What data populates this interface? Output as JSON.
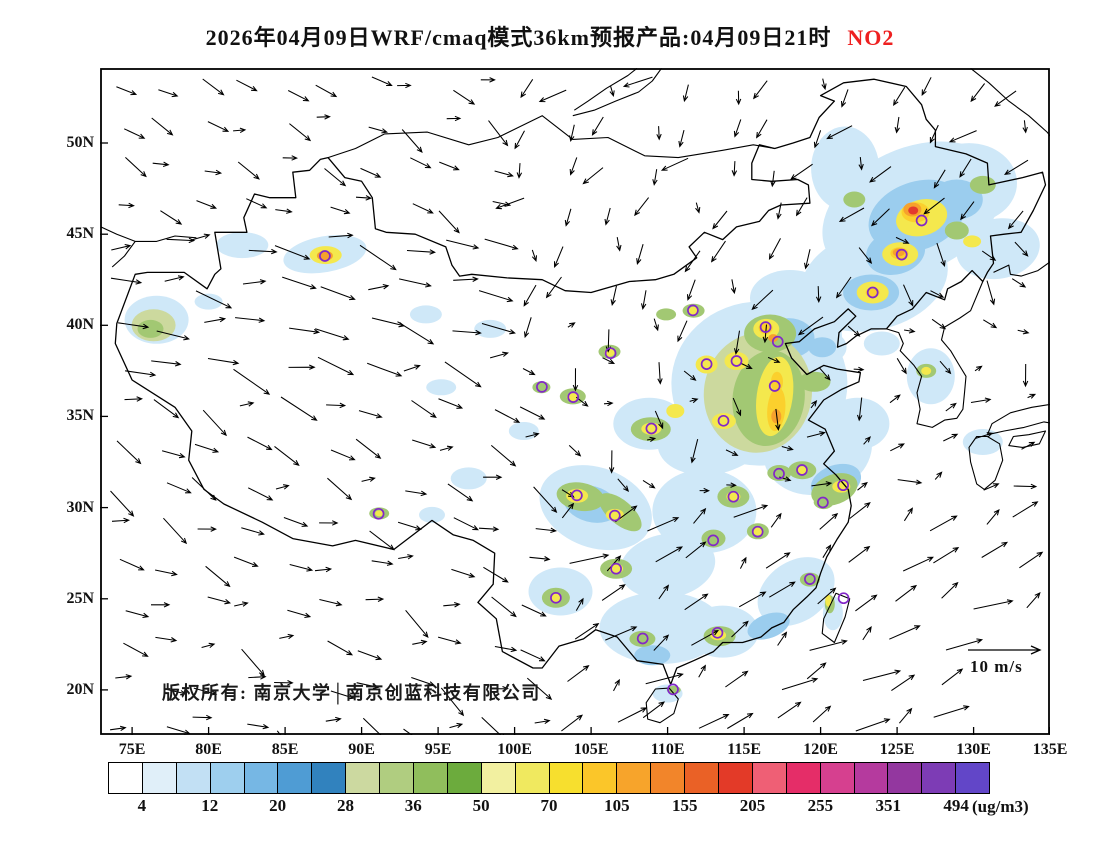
{
  "title": {
    "prefix": "2026年04月09日WRF/cmaq模式36km预报产品:04月09日21时",
    "pollutant": "NO2",
    "pollutant_color": "#ee2020"
  },
  "map": {
    "lat_ticks": [
      {
        "label": "50N",
        "lat": 50
      },
      {
        "label": "45N",
        "lat": 45
      },
      {
        "label": "40N",
        "lat": 40
      },
      {
        "label": "35N",
        "lat": 35
      },
      {
        "label": "30N",
        "lat": 30
      },
      {
        "label": "25N",
        "lat": 25
      },
      {
        "label": "20N",
        "lat": 20
      }
    ],
    "lon_ticks": [
      {
        "label": "75E",
        "lon": 75
      },
      {
        "label": "80E",
        "lon": 80
      },
      {
        "label": "85E",
        "lon": 85
      },
      {
        "label": "90E",
        "lon": 90
      },
      {
        "label": "95E",
        "lon": 95
      },
      {
        "label": "100E",
        "lon": 100
      },
      {
        "label": "105E",
        "lon": 105
      },
      {
        "label": "110E",
        "lon": 110
      },
      {
        "label": "115E",
        "lon": 115
      },
      {
        "label": "120E",
        "lon": 120
      },
      {
        "label": "125E",
        "lon": 125
      },
      {
        "label": "130E",
        "lon": 130
      },
      {
        "label": "135E",
        "lon": 135
      }
    ],
    "copyright": "版权所有: 南京大学│南京创蓝科技有限公司",
    "wind_legend": {
      "label": "10 m/s",
      "speed_mps": 10
    }
  },
  "colorbar": {
    "unit": "(ug/m3)",
    "tick_labels": [
      "4",
      "12",
      "20",
      "28",
      "36",
      "50",
      "70",
      "105",
      "155",
      "205",
      "255",
      "351",
      "494"
    ],
    "colors": [
      "#ffffff",
      "#e0eff9",
      "#c2e0f4",
      "#9ecfee",
      "#76b7e4",
      "#4f9cd4",
      "#3182be",
      "#ccd9a0",
      "#b0cd80",
      "#90be5c",
      "#6cab3d",
      "#f2f0a0",
      "#f0e95f",
      "#f7df2e",
      "#fbc629",
      "#f7a42b",
      "#f2852a",
      "#ea6126",
      "#e33a28",
      "#ef5f75",
      "#e52d68",
      "#d6408f",
      "#b53a9e",
      "#93379f",
      "#7d3cb5",
      "#6246c8"
    ]
  },
  "chart_data": {
    "type": "map",
    "model": "WRF/cmaq",
    "resolution": "36km",
    "issue_date": "2026年04月09日",
    "valid_time": "04月09日21时",
    "pollutant": "NO2",
    "lon_range": [
      75,
      135
    ],
    "lat_range": [
      20,
      50
    ],
    "stations_lonlat": [
      [
        87.6,
        43.8
      ],
      [
        126.6,
        45.75
      ],
      [
        125.3,
        43.88
      ],
      [
        123.4,
        41.8
      ],
      [
        116.4,
        39.9
      ],
      [
        117.2,
        39.1
      ],
      [
        114.5,
        38.04
      ],
      [
        112.55,
        37.87
      ],
      [
        111.65,
        40.82
      ],
      [
        106.27,
        38.47
      ],
      [
        101.78,
        36.62
      ],
      [
        103.83,
        36.06
      ],
      [
        108.94,
        34.34
      ],
      [
        113.65,
        34.76
      ],
      [
        117.0,
        36.67
      ],
      [
        117.28,
        31.86
      ],
      [
        118.78,
        32.06
      ],
      [
        121.47,
        31.23
      ],
      [
        120.15,
        30.28
      ],
      [
        114.3,
        30.6
      ],
      [
        112.98,
        28.2
      ],
      [
        115.89,
        28.68
      ],
      [
        119.3,
        26.08
      ],
      [
        121.5,
        25.03
      ],
      [
        113.26,
        23.13
      ],
      [
        108.37,
        22.82
      ],
      [
        110.35,
        20.03
      ],
      [
        106.63,
        26.65
      ],
      [
        102.7,
        25.05
      ],
      [
        104.07,
        30.67
      ],
      [
        106.55,
        29.56
      ],
      [
        91.11,
        29.66
      ]
    ],
    "hotspots": [
      [
        126.0,
        46.3,
        95,
        62,
        -25,
        "#cfe8f8"
      ],
      [
        123.5,
        42.5,
        75,
        50,
        -15,
        "#cfe8f8"
      ],
      [
        129.7,
        47.8,
        48,
        40,
        0,
        "#cfe8f8"
      ],
      [
        121.6,
        48.6,
        34,
        42,
        0,
        "#cfe8f8"
      ],
      [
        131.6,
        44.2,
        42,
        30,
        -10,
        "#cfe8f8"
      ],
      [
        118.0,
        41.5,
        40,
        28,
        0,
        "#cfe8f8"
      ],
      [
        116.0,
        36.8,
        88,
        82,
        0,
        "#cfe8f8"
      ],
      [
        118.0,
        39.4,
        52,
        38,
        0,
        "#cfe8f8"
      ],
      [
        112.9,
        33.8,
        55,
        36,
        -10,
        "#cfe8f8"
      ],
      [
        119.8,
        33.2,
        55,
        45,
        -15,
        "#cfe8f8"
      ],
      [
        122.4,
        34.6,
        32,
        26,
        0,
        "#cfe8f8"
      ],
      [
        120.0,
        38.8,
        26,
        18,
        0,
        "#cfe8f8"
      ],
      [
        105.3,
        30.0,
        58,
        40,
        20,
        "#cfe8f8"
      ],
      [
        112.4,
        29.8,
        52,
        42,
        0,
        "#cfe8f8"
      ],
      [
        110.0,
        26.8,
        48,
        32,
        -10,
        "#cfe8f8"
      ],
      [
        109.6,
        23.4,
        62,
        36,
        0,
        "#cfe8f8"
      ],
      [
        113.6,
        23.2,
        36,
        26,
        0,
        "#cfe8f8"
      ],
      [
        118.4,
        25.4,
        42,
        30,
        -35,
        "#cfe8f8"
      ],
      [
        103.0,
        25.4,
        32,
        24,
        0,
        "#cfe8f8"
      ],
      [
        108.8,
        34.6,
        36,
        26,
        0,
        "#cfe8f8"
      ],
      [
        97.0,
        31.6,
        18,
        11,
        0,
        "#cfe8f8"
      ],
      [
        100.6,
        34.2,
        15,
        9,
        0,
        "#cfe8f8"
      ],
      [
        95.2,
        36.6,
        15,
        8,
        0,
        "#cfe8f8"
      ],
      [
        94.6,
        29.6,
        13,
        8,
        0,
        "#cfe8f8"
      ],
      [
        87.6,
        43.9,
        42,
        18,
        -10,
        "#cfe8f8"
      ],
      [
        82.2,
        44.4,
        26,
        13,
        0,
        "#cfe8f8"
      ],
      [
        76.6,
        40.3,
        32,
        24,
        0,
        "#cfe8f8"
      ],
      [
        80.0,
        41.3,
        14,
        8,
        0,
        "#cfe8f8"
      ],
      [
        94.2,
        40.6,
        16,
        9,
        0,
        "#cfe8f8"
      ],
      [
        98.4,
        39.8,
        16,
        9,
        0,
        "#cfe8f8"
      ],
      [
        110.0,
        19.8,
        15,
        9,
        0,
        "#cfe8f8"
      ],
      [
        120.8,
        24.2,
        10,
        17,
        0,
        "#cfe8f8"
      ],
      [
        127.2,
        37.2,
        24,
        28,
        0,
        "#cfe8f8"
      ],
      [
        130.6,
        33.6,
        20,
        13,
        0,
        "#cfe8f8"
      ],
      [
        124.0,
        39.0,
        18,
        12,
        0,
        "#cfe8f8"
      ],
      [
        126.3,
        46.0,
        50,
        34,
        -20,
        "#9bcdee"
      ],
      [
        124.9,
        44.0,
        30,
        22,
        -15,
        "#9bcdee"
      ],
      [
        123.3,
        41.8,
        28,
        18,
        0,
        "#9bcdee"
      ],
      [
        128.9,
        46.9,
        26,
        20,
        0,
        "#9bcdee"
      ],
      [
        117.9,
        39.3,
        26,
        20,
        0,
        "#9bcdee"
      ],
      [
        120.1,
        38.8,
        14,
        10,
        0,
        "#9bcdee"
      ],
      [
        121.0,
        31.4,
        26,
        17,
        -20,
        "#9bcdee"
      ],
      [
        105.0,
        30.2,
        28,
        18,
        15,
        "#9bcdee"
      ],
      [
        116.6,
        23.5,
        22,
        12,
        -20,
        "#9bcdee"
      ],
      [
        109.0,
        21.9,
        18,
        10,
        0,
        "#9bcdee"
      ],
      [
        115.9,
        36.3,
        54,
        60,
        8,
        "#ccd99e"
      ],
      [
        76.4,
        40.0,
        22,
        16,
        0,
        "#ccd99e"
      ],
      [
        116.6,
        36.0,
        36,
        48,
        8,
        "#a2c873"
      ],
      [
        116.7,
        39.55,
        26,
        19,
        0,
        "#a2c873"
      ],
      [
        119.6,
        36.9,
        16,
        10,
        0,
        "#a2c873"
      ],
      [
        108.9,
        34.3,
        20,
        12,
        0,
        "#a2c873"
      ],
      [
        104.3,
        30.6,
        24,
        14,
        10,
        "#a2c873"
      ],
      [
        106.9,
        29.75,
        26,
        12,
        40,
        "#a2c873"
      ],
      [
        114.3,
        30.6,
        16,
        11,
        0,
        "#a2c873"
      ],
      [
        113.0,
        28.3,
        12,
        9,
        0,
        "#a2c873"
      ],
      [
        115.9,
        28.7,
        11,
        8,
        0,
        "#a2c873"
      ],
      [
        120.9,
        31.0,
        24,
        15,
        -20,
        "#a2c873"
      ],
      [
        118.8,
        32.05,
        14,
        9,
        0,
        "#a2c873"
      ],
      [
        120.2,
        30.3,
        10,
        7,
        0,
        "#a2c873"
      ],
      [
        117.3,
        31.9,
        12,
        8,
        0,
        "#a2c873"
      ],
      [
        119.3,
        26.05,
        10,
        7,
        0,
        "#a2c873"
      ],
      [
        113.4,
        22.95,
        16,
        10,
        0,
        "#a2c873"
      ],
      [
        108.35,
        22.8,
        13,
        8,
        0,
        "#a2c873"
      ],
      [
        106.63,
        26.65,
        16,
        10,
        0,
        "#a2c873"
      ],
      [
        102.7,
        25.05,
        14,
        10,
        0,
        "#a2c873"
      ],
      [
        103.8,
        36.1,
        13,
        8,
        0,
        "#a2c873"
      ],
      [
        101.75,
        36.6,
        9,
        6,
        0,
        "#a2c873"
      ],
      [
        106.2,
        38.55,
        11,
        7,
        0,
        "#a2c873"
      ],
      [
        111.7,
        40.8,
        11,
        7,
        0,
        "#a2c873"
      ],
      [
        109.9,
        40.6,
        10,
        6,
        0,
        "#a2c873"
      ],
      [
        91.15,
        29.68,
        10,
        6,
        0,
        "#a2c873"
      ],
      [
        128.9,
        45.2,
        12,
        9,
        0,
        "#a2c873"
      ],
      [
        130.6,
        47.7,
        13,
        9,
        0,
        "#a2c873"
      ],
      [
        122.2,
        46.9,
        11,
        8,
        0,
        "#a2c873"
      ],
      [
        76.2,
        39.8,
        13,
        9,
        0,
        "#a2c873"
      ],
      [
        110.4,
        20.0,
        7,
        4,
        0,
        "#a2c873"
      ],
      [
        120.6,
        24.7,
        5,
        9,
        0,
        "#a2c873"
      ],
      [
        126.9,
        37.5,
        10,
        7,
        0,
        "#a2c873"
      ],
      [
        117.0,
        36.1,
        18,
        40,
        8,
        "#f4e84d"
      ],
      [
        116.45,
        39.8,
        13,
        10,
        0,
        "#f4e84d"
      ],
      [
        114.5,
        38.04,
        12,
        9,
        0,
        "#f4e84d"
      ],
      [
        112.55,
        37.85,
        11,
        9,
        0,
        "#f4e84d"
      ],
      [
        113.68,
        34.75,
        12,
        8,
        0,
        "#f4e84d"
      ],
      [
        117.0,
        36.66,
        11,
        8,
        0,
        "#f4e84d"
      ],
      [
        108.93,
        34.32,
        10,
        6,
        0,
        "#f4e84d"
      ],
      [
        104.08,
        30.65,
        11,
        7,
        0,
        "#f4e84d"
      ],
      [
        106.55,
        29.6,
        9,
        6,
        0,
        "#f4e84d"
      ],
      [
        114.3,
        30.6,
        7,
        5,
        0,
        "#f4e84d"
      ],
      [
        121.35,
        31.15,
        9,
        6,
        0,
        "#f4e84d"
      ],
      [
        118.8,
        32.05,
        6,
        4,
        0,
        "#f4e84d"
      ],
      [
        113.3,
        23.0,
        8,
        5,
        0,
        "#f4e84d"
      ],
      [
        106.63,
        26.65,
        7,
        5,
        0,
        "#f4e84d"
      ],
      [
        102.7,
        25.05,
        6,
        4,
        0,
        "#f4e84d"
      ],
      [
        126.6,
        45.9,
        26,
        18,
        -15,
        "#f4e84d"
      ],
      [
        125.2,
        43.9,
        18,
        12,
        0,
        "#f4e84d"
      ],
      [
        123.4,
        41.8,
        16,
        11,
        0,
        "#f4e84d"
      ],
      [
        129.9,
        44.6,
        9,
        6,
        0,
        "#f4e84d"
      ],
      [
        87.65,
        43.85,
        16,
        9,
        0,
        "#f4e84d"
      ],
      [
        103.8,
        36.05,
        6,
        4,
        0,
        "#f4e84d"
      ],
      [
        106.2,
        38.5,
        5,
        4,
        0,
        "#f4e84d"
      ],
      [
        111.7,
        40.8,
        5,
        4,
        0,
        "#f4e84d"
      ],
      [
        91.15,
        29.68,
        4,
        3,
        0,
        "#f4e84d"
      ],
      [
        115.9,
        28.7,
        5,
        4,
        0,
        "#f4e84d"
      ],
      [
        120.5,
        24.9,
        3,
        6,
        0,
        "#f4e84d"
      ],
      [
        110.5,
        35.3,
        9,
        7,
        0,
        "#f4e84d"
      ],
      [
        126.9,
        37.5,
        5,
        4,
        0,
        "#f4e84d"
      ],
      [
        117.1,
        35.4,
        9,
        22,
        5,
        "#fbd02d"
      ],
      [
        117.15,
        36.9,
        6,
        10,
        0,
        "#fbd02d"
      ],
      [
        126.2,
        46.2,
        14,
        10,
        0,
        "#fbd02d"
      ],
      [
        125.15,
        43.95,
        9,
        6,
        0,
        "#fbd02d"
      ],
      [
        123.4,
        41.8,
        7,
        5,
        0,
        "#fbd02d"
      ],
      [
        116.4,
        39.85,
        7,
        6,
        0,
        "#fbd02d"
      ],
      [
        126.0,
        46.35,
        9,
        7,
        0,
        "#f6a12d"
      ],
      [
        125.1,
        44.0,
        6,
        4,
        0,
        "#f6a12d"
      ],
      [
        87.6,
        43.82,
        8,
        5,
        0,
        "#f6a12d"
      ],
      [
        116.9,
        39.3,
        5,
        4,
        0,
        "#f6a12d"
      ],
      [
        117.1,
        35.0,
        5,
        7,
        0,
        "#f6a12d"
      ],
      [
        126.05,
        46.3,
        5,
        4,
        0,
        "#e33b2e"
      ]
    ]
  }
}
